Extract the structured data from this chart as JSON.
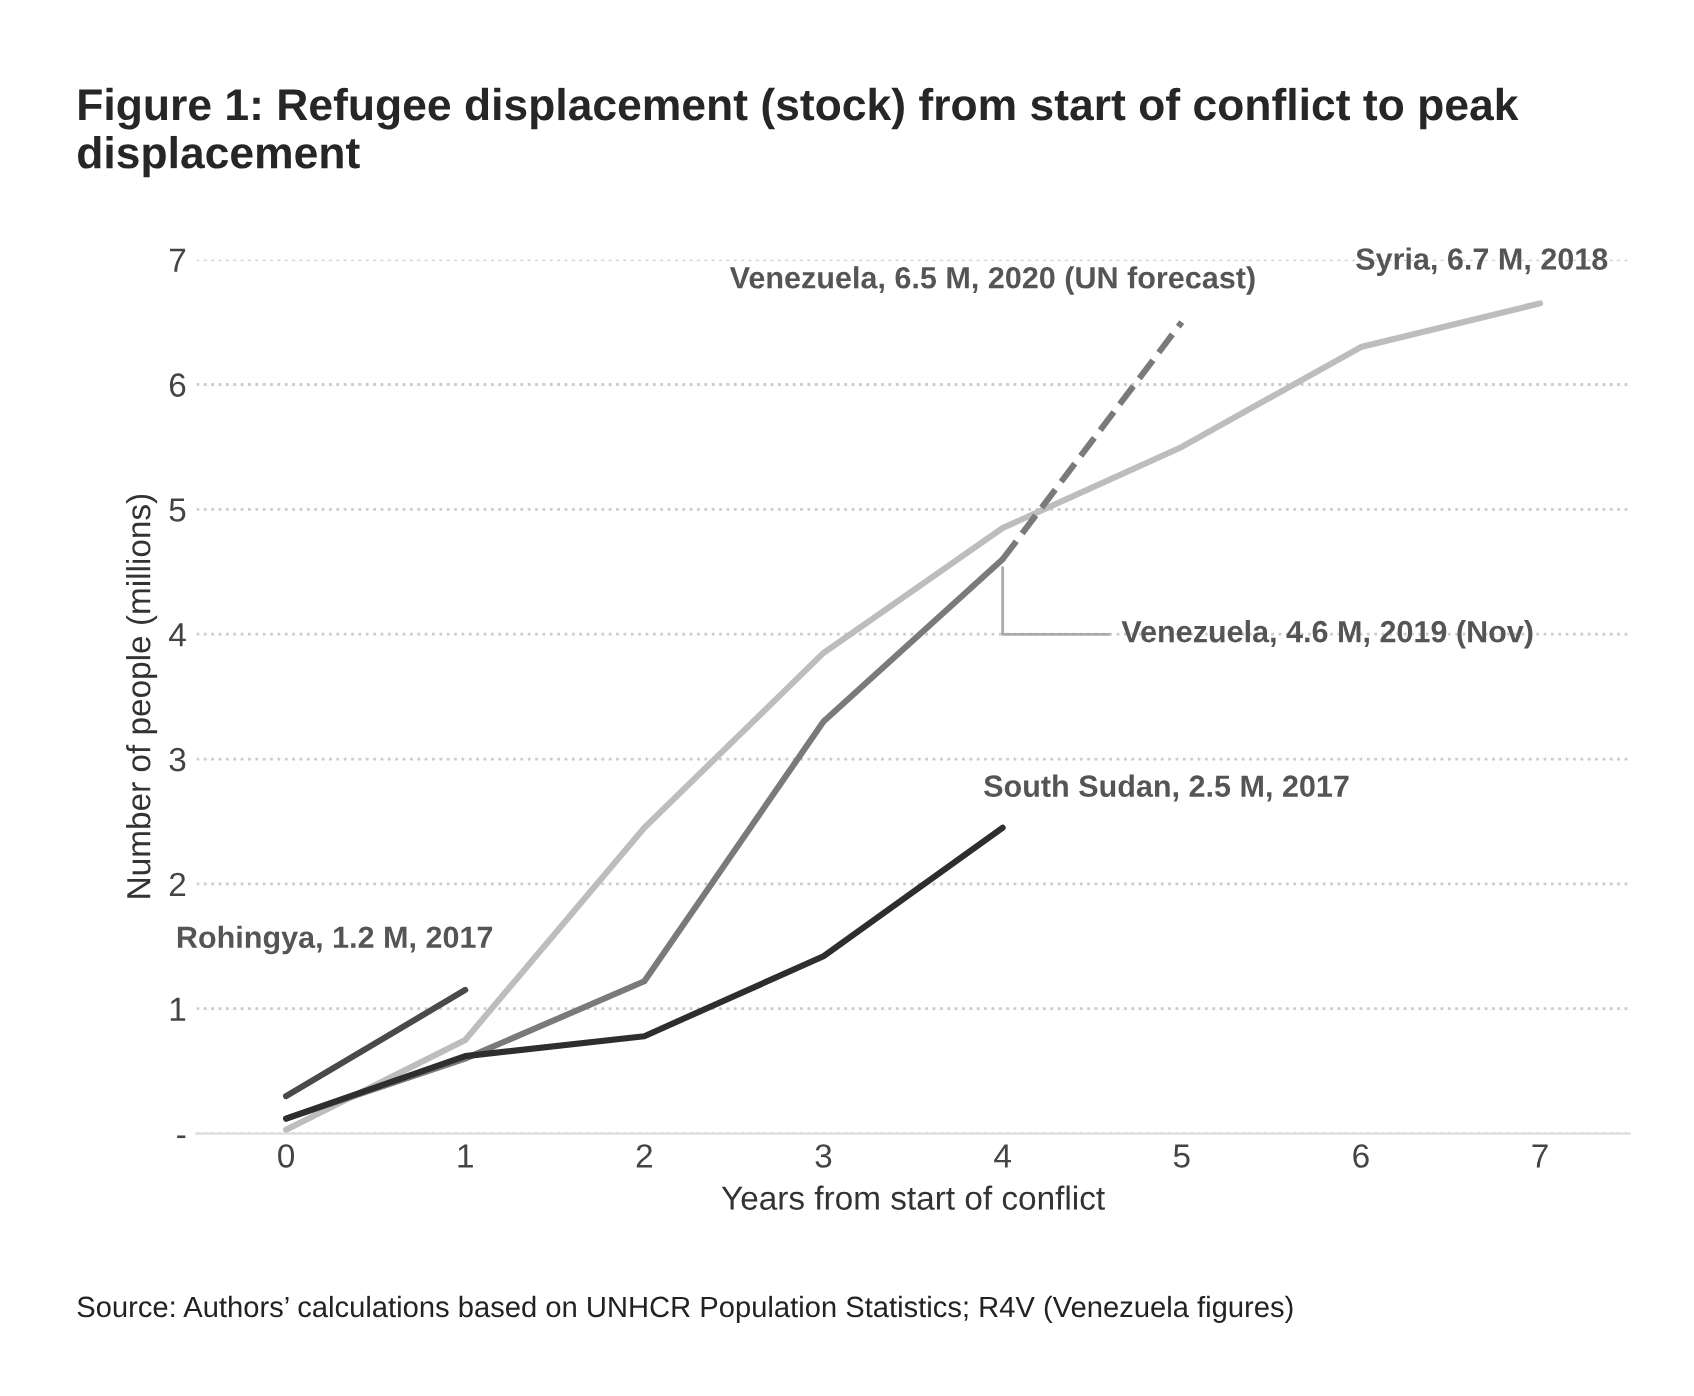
{
  "chart_data": {
    "type": "line",
    "title": "Figure 1: Refugee displacement (stock) from start of conflict to peak displacement",
    "xlabel": "Years from start of conflict",
    "ylabel": "Number of people (millions)",
    "xlim": [
      -0.5,
      7.5
    ],
    "xticks": [
      0,
      1,
      2,
      3,
      4,
      5,
      6,
      7
    ],
    "ylim": [
      0,
      7
    ],
    "yticks": [
      {
        "value": 0,
        "label": "-"
      },
      1,
      2,
      3,
      4,
      5,
      6,
      7
    ],
    "grid": "y",
    "line_style": "solid",
    "series": [
      {
        "color": "#bdbdbd",
        "x": [
          0,
          1,
          2,
          3,
          4,
          5,
          6,
          7
        ],
        "values": [
          0.03,
          0.75,
          2.45,
          3.85,
          4.85,
          5.5,
          6.3,
          6.65
        ]
      },
      {
        "color": "#7a7a7a",
        "x": [
          0,
          1,
          2,
          3,
          4
        ],
        "values": [
          0.12,
          0.6,
          1.22,
          3.3,
          4.6
        ]
      },
      {
        "color": "#7a7a7a",
        "x": [
          4,
          5
        ],
        "values": [
          4.6,
          6.5
        ],
        "line_style": "dashed"
      },
      {
        "color": "#2e2e2e",
        "x": [
          0,
          1,
          2,
          3,
          4
        ],
        "values": [
          0.12,
          0.62,
          0.78,
          1.42,
          2.45
        ]
      },
      {
        "color": "#4a4a4a",
        "x": [
          0,
          1
        ],
        "values": [
          0.3,
          1.15
        ]
      }
    ],
    "annotations": [
      {
        "text": "Rohingya, 1.2 M, 2017",
        "x": 1,
        "y": 1.15
      },
      {
        "text": "South Sudan, 2.5 M, 2017",
        "x": 4,
        "y": 2.45
      },
      {
        "text": "Venezuela, 4.6 M, 2019 (Nov)",
        "x": 4,
        "y": 4.6
      },
      {
        "text": "Venezuela, 6.5 M, 2020 (UN forecast)",
        "x": 5,
        "y": 6.5
      },
      {
        "text": "Syria, 6.7 M, 2018",
        "x": 7,
        "y": 6.65
      },
      "Source: Authors’ calculations based on UNHCR Population Statistics; R4V (Venezuela figures)"
    ]
  }
}
